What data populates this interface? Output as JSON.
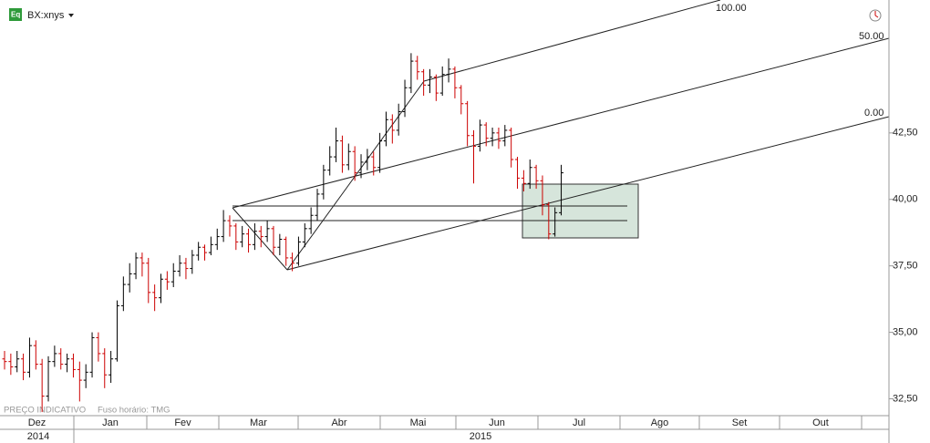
{
  "header": {
    "symbol": "BX:xnys"
  },
  "footer": {
    "note": "PREÇO INDICATIVO",
    "timezone": "Fuso horário: TMG"
  },
  "chart_data": {
    "type": "ohlc",
    "categories": [
      "Dez",
      "Jan",
      "Fev",
      "Mar",
      "Abr",
      "Mai",
      "Jun",
      "Jul",
      "Ago",
      "Set",
      "Out"
    ],
    "years": [
      "2014",
      "2015"
    ],
    "annotations": [
      "100.00",
      "50.00",
      "0.00"
    ],
    "up_color": "#000000",
    "down_color": "#cc0000",
    "ylim": [
      31.9,
      47.5
    ],
    "yticks": [
      {
        "value": 32.5,
        "label": "32,50"
      },
      {
        "value": 35,
        "label": "35,00"
      },
      {
        "value": 37.5,
        "label": "37,50"
      },
      {
        "value": 40,
        "label": "40,00"
      },
      {
        "value": 42.5,
        "label": "42,50"
      }
    ],
    "ohlc": [
      [
        34.0,
        34.3,
        33.6,
        33.9
      ],
      [
        33.9,
        34.2,
        33.4,
        33.7
      ],
      [
        33.7,
        34.3,
        33.5,
        34.0
      ],
      [
        34.0,
        34.2,
        33.2,
        33.5
      ],
      [
        33.5,
        34.8,
        33.3,
        34.5
      ],
      [
        34.5,
        34.7,
        33.6,
        33.8
      ],
      [
        33.8,
        34.0,
        32.0,
        32.6
      ],
      [
        32.6,
        34.1,
        32.4,
        33.9
      ],
      [
        33.9,
        34.5,
        33.7,
        34.2
      ],
      [
        34.2,
        34.4,
        33.6,
        33.8
      ],
      [
        33.8,
        34.2,
        33.5,
        34.0
      ],
      [
        34.0,
        34.2,
        33.3,
        33.6
      ],
      [
        33.6,
        33.9,
        32.4,
        33.2
      ],
      [
        33.2,
        33.8,
        32.9,
        33.5
      ],
      [
        33.5,
        35.0,
        33.3,
        34.8
      ],
      [
        34.8,
        35.0,
        33.9,
        34.2
      ],
      [
        34.2,
        34.4,
        32.9,
        33.4
      ],
      [
        33.4,
        34.3,
        33.1,
        34.0
      ],
      [
        34.0,
        36.2,
        33.9,
        36.0
      ],
      [
        36.0,
        37.1,
        35.8,
        36.8
      ],
      [
        36.8,
        37.6,
        36.5,
        37.2
      ],
      [
        37.2,
        38.0,
        37.0,
        37.8
      ],
      [
        37.8,
        38.0,
        37.1,
        37.6
      ],
      [
        37.6,
        37.8,
        36.1,
        36.5
      ],
      [
        36.5,
        36.8,
        35.8,
        36.3
      ],
      [
        36.3,
        37.2,
        36.1,
        37.0
      ],
      [
        37.0,
        37.3,
        36.6,
        36.9
      ],
      [
        36.9,
        37.6,
        36.7,
        37.3
      ],
      [
        37.3,
        37.9,
        37.1,
        37.6
      ],
      [
        37.6,
        37.8,
        37.0,
        37.4
      ],
      [
        37.4,
        38.1,
        37.2,
        37.9
      ],
      [
        37.9,
        38.4,
        37.7,
        38.2
      ],
      [
        38.2,
        38.3,
        37.7,
        38.0
      ],
      [
        38.0,
        38.6,
        37.9,
        38.3
      ],
      [
        38.3,
        38.9,
        38.1,
        38.6
      ],
      [
        38.6,
        39.6,
        38.4,
        39.2
      ],
      [
        39.2,
        39.4,
        38.6,
        39.0
      ],
      [
        39.0,
        39.1,
        38.1,
        38.4
      ],
      [
        38.4,
        39.0,
        38.2,
        38.7
      ],
      [
        38.7,
        38.9,
        38.0,
        38.3
      ],
      [
        38.3,
        39.1,
        38.1,
        38.8
      ],
      [
        38.8,
        39.0,
        38.2,
        38.6
      ],
      [
        38.6,
        39.2,
        38.4,
        38.9
      ],
      [
        38.9,
        39.0,
        37.9,
        38.2
      ],
      [
        38.2,
        38.7,
        37.9,
        38.5
      ],
      [
        38.5,
        38.6,
        37.5,
        37.8
      ],
      [
        37.8,
        38.0,
        37.3,
        37.6
      ],
      [
        37.6,
        38.6,
        37.5,
        38.4
      ],
      [
        38.4,
        39.1,
        38.2,
        38.9
      ],
      [
        38.9,
        39.7,
        38.7,
        39.4
      ],
      [
        39.4,
        40.4,
        39.2,
        40.2
      ],
      [
        40.2,
        41.3,
        40.0,
        41.1
      ],
      [
        41.1,
        42.0,
        40.9,
        41.6
      ],
      [
        41.6,
        42.7,
        41.4,
        42.2
      ],
      [
        42.2,
        42.4,
        41.0,
        41.3
      ],
      [
        41.3,
        42.1,
        41.1,
        41.8
      ],
      [
        41.8,
        42.0,
        40.7,
        41.0
      ],
      [
        41.0,
        41.7,
        40.8,
        41.4
      ],
      [
        41.4,
        41.9,
        41.1,
        41.6
      ],
      [
        41.6,
        41.8,
        40.9,
        41.2
      ],
      [
        41.2,
        42.5,
        41.0,
        42.2
      ],
      [
        42.2,
        43.3,
        42.0,
        43.0
      ],
      [
        43.0,
        43.2,
        42.1,
        42.6
      ],
      [
        42.6,
        43.6,
        42.4,
        43.3
      ],
      [
        43.3,
        44.5,
        43.1,
        44.2
      ],
      [
        44.2,
        45.5,
        44.0,
        45.2
      ],
      [
        45.2,
        45.4,
        44.5,
        44.8
      ],
      [
        44.8,
        44.9,
        43.9,
        44.3
      ],
      [
        44.3,
        44.9,
        44.0,
        44.6
      ],
      [
        44.6,
        44.7,
        43.7,
        44.0
      ],
      [
        44.0,
        45.0,
        43.9,
        44.7
      ],
      [
        44.7,
        45.3,
        44.4,
        44.9
      ],
      [
        44.9,
        45.0,
        43.8,
        44.2
      ],
      [
        44.2,
        44.3,
        43.2,
        43.6
      ],
      [
        43.6,
        43.7,
        42.0,
        42.4
      ],
      [
        42.4,
        42.6,
        40.6,
        42.0
      ],
      [
        42.0,
        43.0,
        41.8,
        42.8
      ],
      [
        42.8,
        42.9,
        42.0,
        42.3
      ],
      [
        42.3,
        42.7,
        42.0,
        42.5
      ],
      [
        42.5,
        42.7,
        41.9,
        42.2
      ],
      [
        42.2,
        42.8,
        42.0,
        42.6
      ],
      [
        42.6,
        42.7,
        41.2,
        41.5
      ],
      [
        41.5,
        41.6,
        40.4,
        40.8
      ],
      [
        40.8,
        41.1,
        40.3,
        40.6
      ],
      [
        40.6,
        41.5,
        40.4,
        41.2
      ],
      [
        41.2,
        41.3,
        40.4,
        40.7
      ],
      [
        40.7,
        40.9,
        39.4,
        39.8
      ],
      [
        39.8,
        39.9,
        38.5,
        38.7
      ],
      [
        38.7,
        39.7,
        38.6,
        39.5
      ],
      [
        39.5,
        41.3,
        39.4,
        41.0
      ]
    ]
  }
}
